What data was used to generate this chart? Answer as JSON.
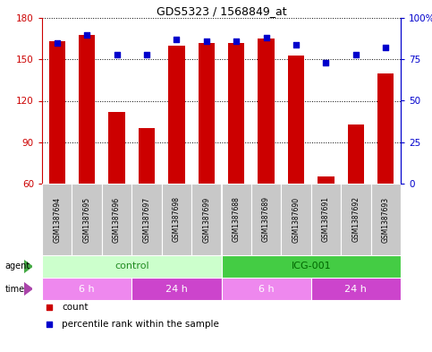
{
  "title": "GDS5323 / 1568849_at",
  "samples": [
    "GSM1387694",
    "GSM1387695",
    "GSM1387696",
    "GSM1387697",
    "GSM1387698",
    "GSM1387699",
    "GSM1387688",
    "GSM1387689",
    "GSM1387690",
    "GSM1387691",
    "GSM1387692",
    "GSM1387693"
  ],
  "counts": [
    163,
    168,
    112,
    100,
    160,
    162,
    162,
    165,
    153,
    65,
    103,
    140
  ],
  "percentiles": [
    85,
    90,
    78,
    78,
    87,
    86,
    86,
    88,
    84,
    73,
    78,
    82
  ],
  "y_min": 60,
  "y_max": 180,
  "y_ticks": [
    60,
    90,
    120,
    150,
    180
  ],
  "y_right_ticks": [
    0,
    25,
    50,
    75,
    100
  ],
  "y_right_labels": [
    "0",
    "25",
    "50",
    "75",
    "100%"
  ],
  "bar_color": "#cc0000",
  "dot_color": "#0000cc",
  "plot_bg": "#ffffff",
  "agent_groups": [
    {
      "label": "control",
      "start": 0,
      "end": 6,
      "color": "#ccffcc",
      "text_color": "#228B22"
    },
    {
      "label": "ICG-001",
      "start": 6,
      "end": 12,
      "color": "#44cc44",
      "text_color": "#006600"
    }
  ],
  "time_groups": [
    {
      "label": "6 h",
      "start": 0,
      "end": 3,
      "color": "#ee88ee"
    },
    {
      "label": "24 h",
      "start": 3,
      "end": 6,
      "color": "#cc44cc"
    },
    {
      "label": "6 h",
      "start": 6,
      "end": 9,
      "color": "#ee88ee"
    },
    {
      "label": "24 h",
      "start": 9,
      "end": 12,
      "color": "#cc44cc"
    }
  ],
  "legend_count_color": "#cc0000",
  "legend_dot_color": "#0000cc",
  "left_axis_color": "#cc0000",
  "right_axis_color": "#0000cc",
  "grid_color": "#000000",
  "sample_bg": "#c8c8c8",
  "agent_label_color": "#333333",
  "time_label_color": "#333333",
  "arrow_agent_color": "#44aa44",
  "arrow_time_color": "#aa44aa"
}
